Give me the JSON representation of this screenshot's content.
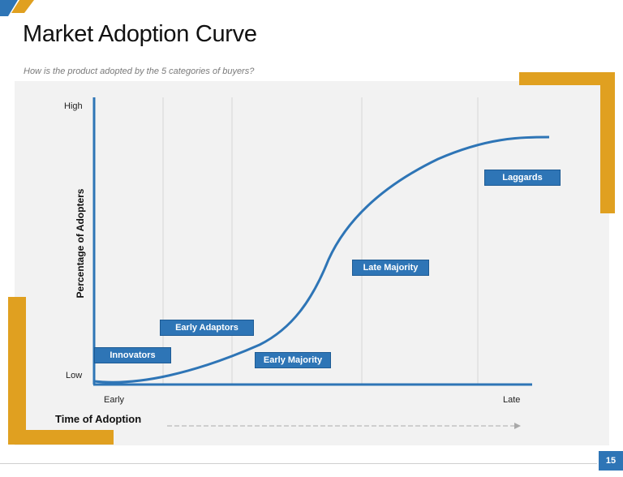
{
  "slide": {
    "title": "Market Adoption Curve",
    "subtitle": "How is the product adopted by the 5 categories of buyers?",
    "page_number": "15"
  },
  "diagram": {
    "y_axis_label": "Percentage of Adopters",
    "y_high": "High",
    "y_low": "Low",
    "x_early": "Early",
    "x_late": "Late",
    "x_axis_title": "Time of Adoption",
    "categories": [
      "Innovators",
      "Early Adaptors",
      "Early Majority",
      "Late Majority",
      "Laggards"
    ]
  },
  "colors": {
    "accent_blue": "#2e75b6",
    "accent_gold": "#e0a020",
    "panel_gray": "#f2f2f2"
  }
}
